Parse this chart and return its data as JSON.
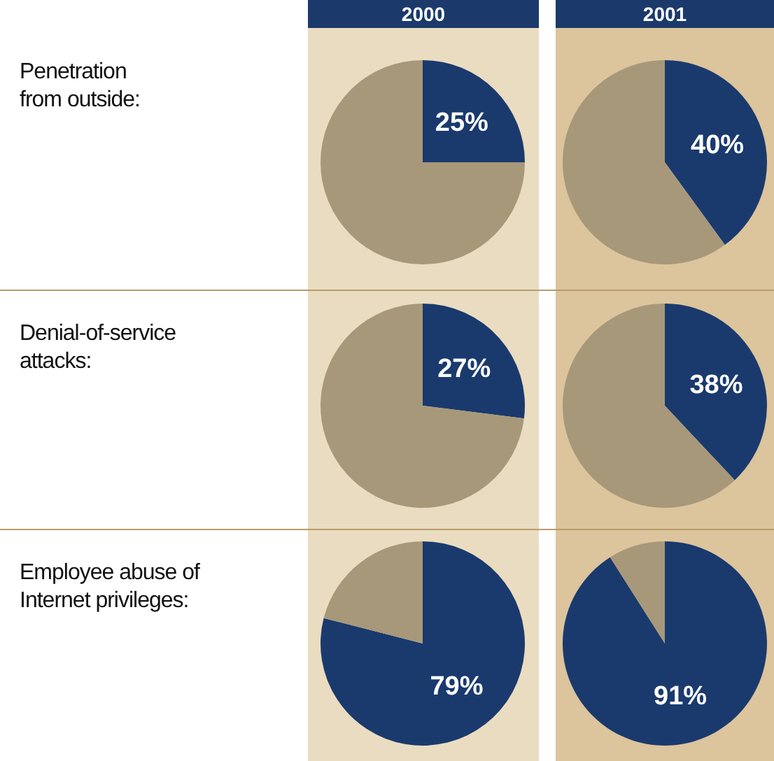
{
  "chart_data": [
    {
      "type": "other",
      "categories": [
        "2000",
        "2001"
      ],
      "annotations": [
        "Penetration\nfrom outside:",
        "Denial-of-service\nattacks:",
        "Employee abuse of\nInternet privileges:"
      ]
    },
    {
      "type": "pie",
      "categories": [
        null,
        null
      ],
      "values": [
        25,
        75
      ],
      "colors": [
        "#1a3a6e",
        "#a8987a"
      ],
      "value_labels": [
        "25%",
        null
      ]
    },
    {
      "type": "pie",
      "categories": [
        null,
        null
      ],
      "values": [
        40,
        60
      ],
      "colors": [
        "#1a3a6e",
        "#a8987a"
      ],
      "value_labels": [
        "40%",
        null
      ]
    },
    {
      "type": "pie",
      "categories": [
        null,
        null
      ],
      "values": [
        27,
        73
      ],
      "colors": [
        "#1a3a6e",
        "#a8987a"
      ],
      "value_labels": [
        "27%",
        null
      ]
    },
    {
      "type": "pie",
      "categories": [
        null,
        null
      ],
      "values": [
        38,
        62
      ],
      "colors": [
        "#1a3a6e",
        "#a8987a"
      ],
      "value_labels": [
        "38%",
        null
      ]
    },
    {
      "type": "pie",
      "categories": [
        null,
        null
      ],
      "values": [
        79,
        21
      ],
      "colors": [
        "#1a3a6e",
        "#a8987a"
      ],
      "value_labels": [
        "79%",
        null
      ]
    },
    {
      "type": "pie",
      "categories": [
        null,
        null
      ],
      "values": [
        91,
        9
      ],
      "colors": [
        "#1a3a6e",
        "#a8987a"
      ],
      "value_labels": [
        "91%",
        null
      ]
    }
  ]
}
